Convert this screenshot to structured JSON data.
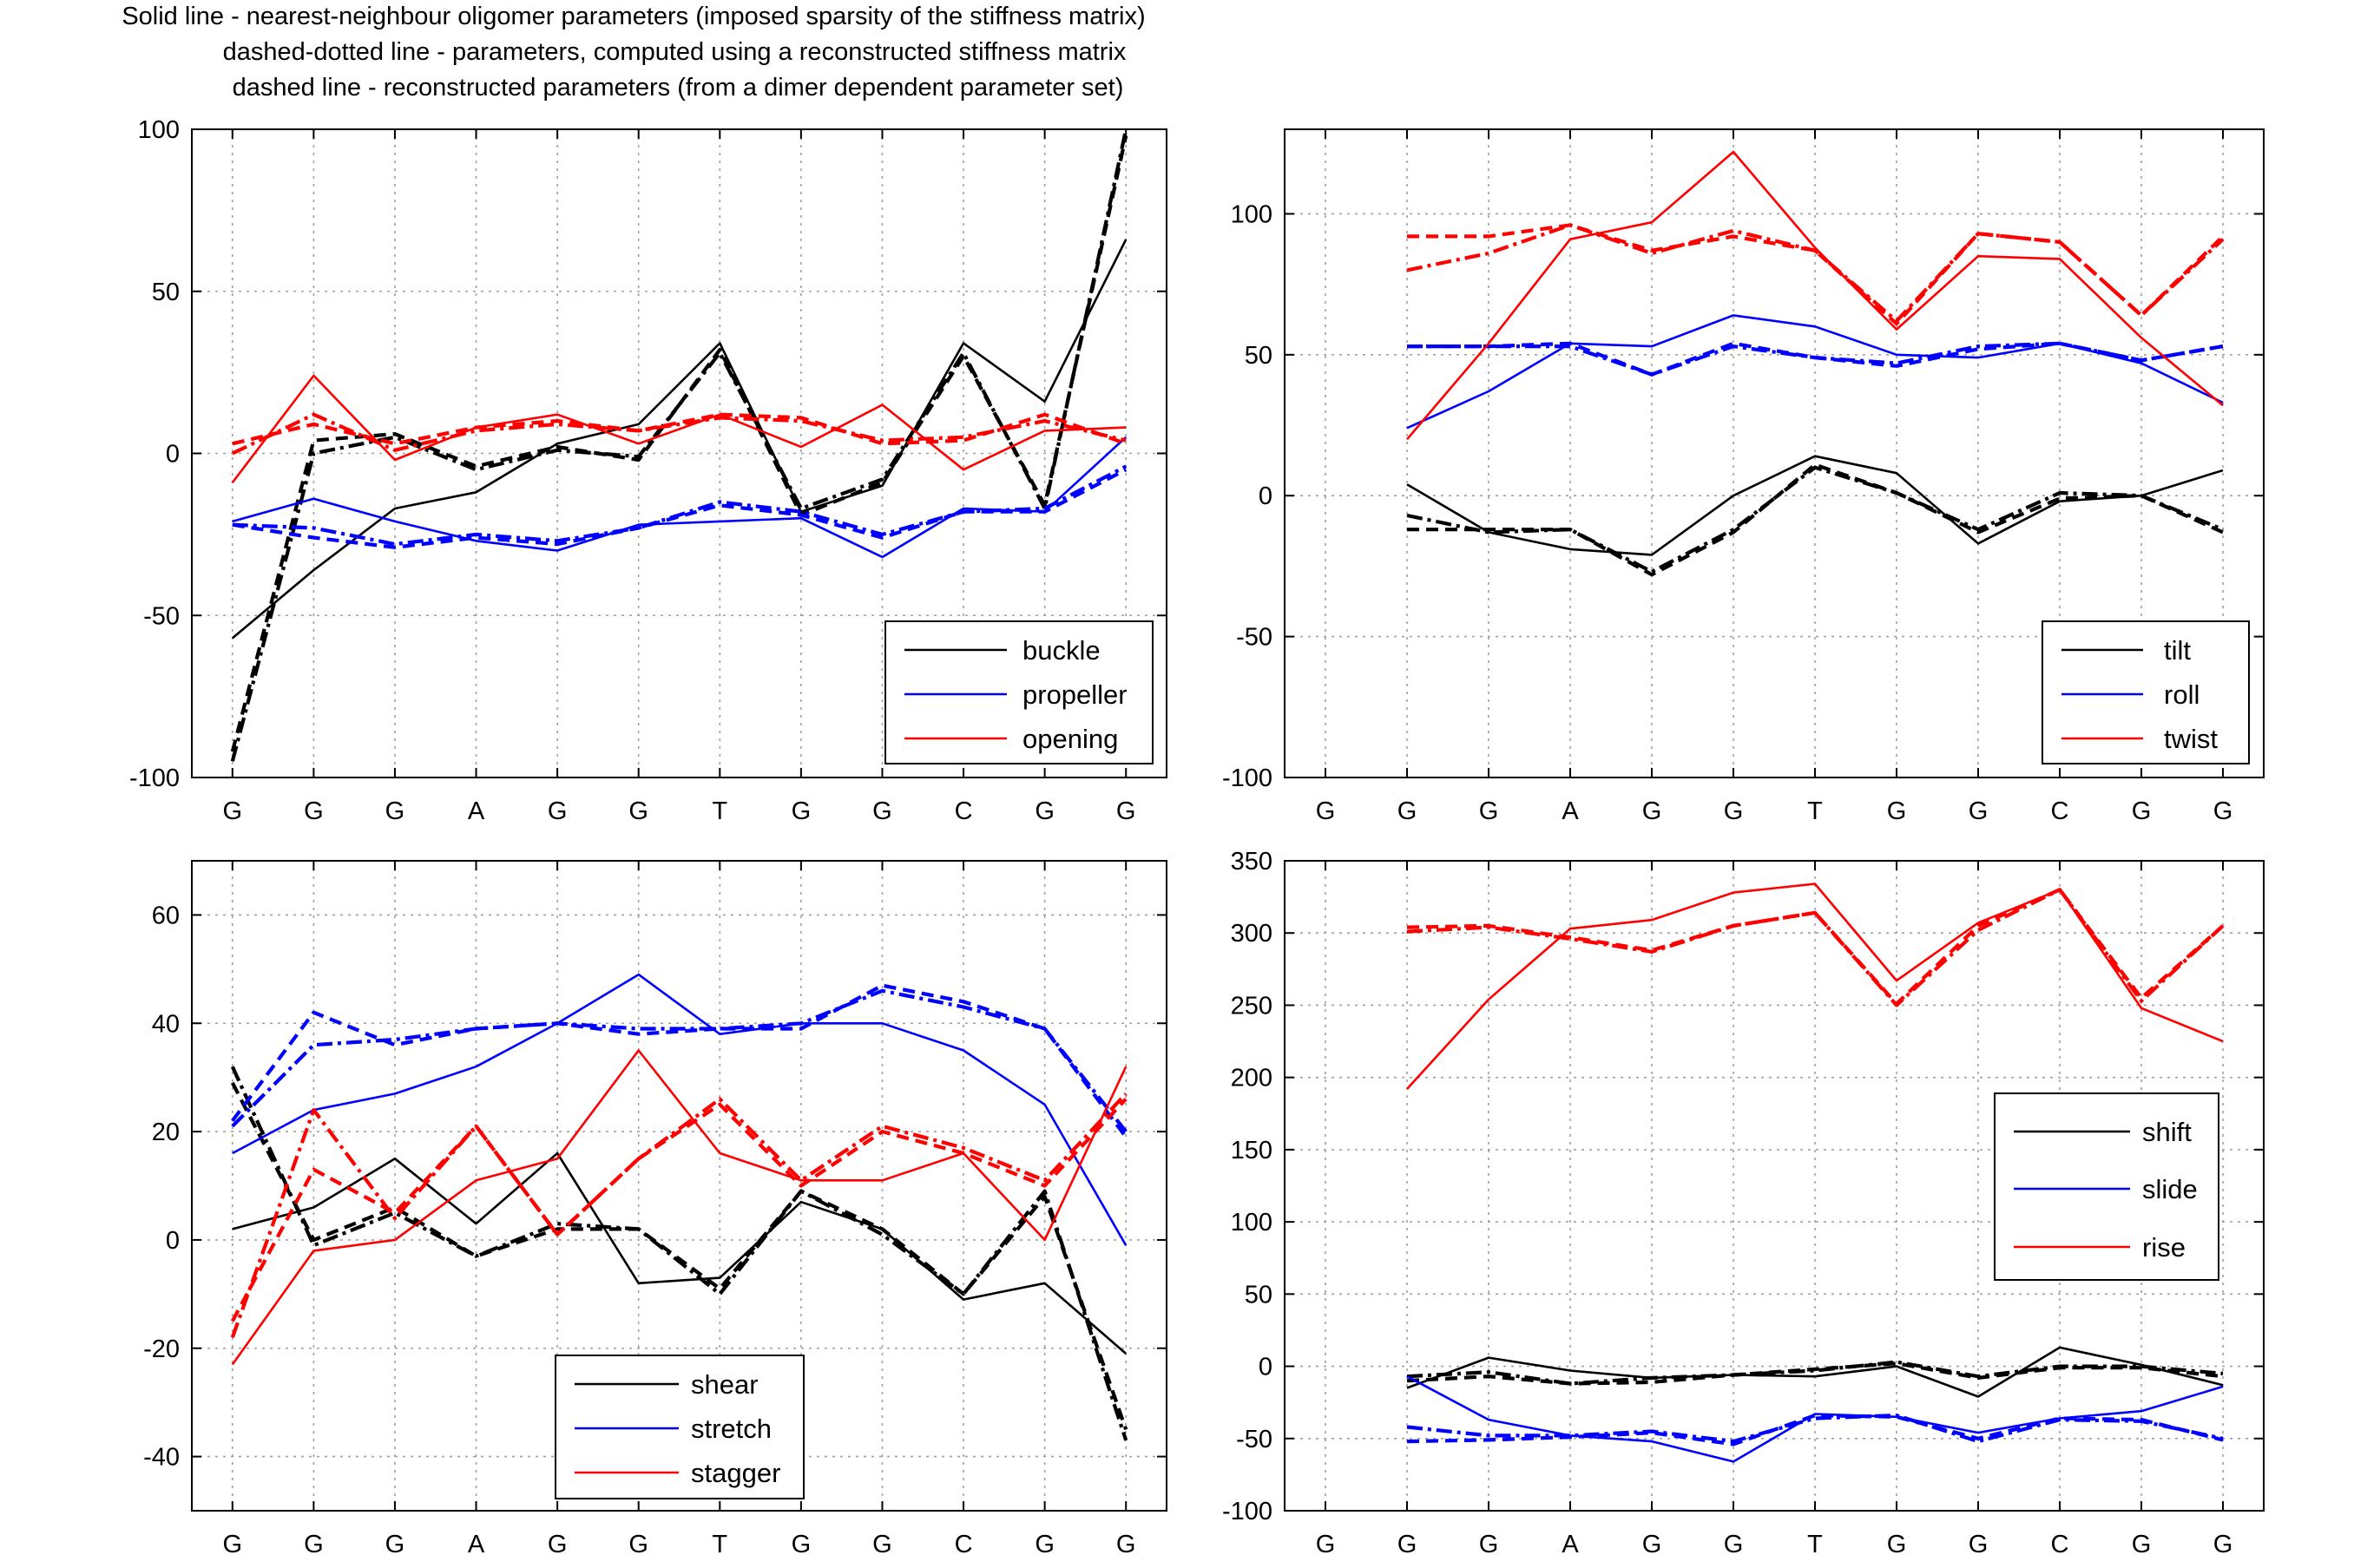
{
  "title_lines": [
    "Solid line - nearest-neighbour oligomer parameters (imposed sparsity of the stiffness matrix)",
    "dashed-dotted line - parameters, computed using a reconstructed stiffness matrix",
    "dashed line - reconstructed parameters (from a dimer dependent parameter set)"
  ],
  "colors": {
    "black": "#000000",
    "blue": "#0000ff",
    "red": "#ff0000"
  },
  "line_styles": [
    "solid",
    "dash-dot",
    "dashed"
  ],
  "chart_data": [
    {
      "type": "line",
      "id": "base-pair-rotations",
      "categories": [
        "G",
        "G",
        "G",
        "A",
        "G",
        "G",
        "T",
        "G",
        "G",
        "C",
        "G",
        "G"
      ],
      "xlim": [
        0.5,
        12.5
      ],
      "ylim": [
        -100,
        100
      ],
      "yticks": [
        -100,
        -50,
        0,
        50,
        100
      ],
      "grid": true,
      "legend_position": "bottom-right",
      "series": [
        {
          "name": "buckle",
          "color": "#000000",
          "solid": [
            -57,
            -36,
            -17,
            -12,
            3,
            9,
            34,
            -18,
            -10,
            34,
            16,
            66
          ],
          "dashdot": [
            -95,
            0,
            5,
            -5,
            1,
            -1,
            31,
            -17,
            -8,
            31,
            -17,
            100
          ],
          "dashed": [
            -92,
            4,
            6,
            -4,
            2,
            -2,
            32,
            -19,
            -9,
            30,
            -16,
            98
          ]
        },
        {
          "name": "propeller",
          "color": "#0000ff",
          "solid": [
            -21,
            -14,
            -21,
            -27,
            -30,
            -22,
            -21,
            -20,
            -32,
            -17,
            -18,
            5
          ],
          "dashdot": [
            -22,
            -23,
            -28,
            -25,
            -27,
            -23,
            -15,
            -18,
            -25,
            -18,
            -17,
            -4
          ],
          "dashed": [
            -22,
            -26,
            -29,
            -26,
            -28,
            -23,
            -16,
            -19,
            -26,
            -18,
            -18,
            -5
          ]
        },
        {
          "name": "opening",
          "color": "#ff0000",
          "solid": [
            -9,
            24,
            -2,
            8,
            12,
            3,
            12,
            2,
            15,
            -5,
            7,
            8
          ],
          "dashdot": [
            0,
            12,
            1,
            7,
            9,
            7,
            11,
            10,
            4,
            5,
            10,
            4
          ],
          "dashed": [
            3,
            9,
            3,
            8,
            10,
            7,
            12,
            11,
            3,
            4,
            12,
            3
          ]
        }
      ]
    },
    {
      "type": "line",
      "id": "step-rotations",
      "categories": [
        "G",
        "G",
        "G",
        "A",
        "G",
        "G",
        "T",
        "G",
        "G",
        "C",
        "G",
        "G"
      ],
      "xlim": [
        0.5,
        12.5
      ],
      "ylim": [
        -100,
        130
      ],
      "yticks": [
        -100,
        -50,
        0,
        50,
        100
      ],
      "grid": true,
      "legend_position": "bottom-right",
      "series": [
        {
          "name": "tilt",
          "color": "#000000",
          "solid": [
            4,
            -13,
            -19,
            -21,
            0,
            14,
            8,
            -17,
            -2,
            0,
            9
          ],
          "dashdot": [
            -7,
            -13,
            -12,
            -27,
            -12,
            10,
            1,
            -12,
            1,
            0,
            -12
          ],
          "dashed": [
            -12,
            -12,
            -12,
            -28,
            -13,
            11,
            1,
            -13,
            -1,
            0,
            -13
          ]
        },
        {
          "name": "roll",
          "color": "#0000ff",
          "solid": [
            24,
            37,
            54,
            53,
            64,
            60,
            50,
            49,
            54,
            47,
            33
          ],
          "dashdot": [
            53,
            53,
            53,
            43,
            53,
            49,
            47,
            53,
            54,
            48,
            53
          ],
          "dashed": [
            53,
            53,
            54,
            43,
            54,
            49,
            46,
            52,
            54,
            48,
            53
          ]
        },
        {
          "name": "twist",
          "color": "#ff0000",
          "solid": [
            20,
            54,
            91,
            97,
            122,
            88,
            59,
            85,
            84,
            56,
            32
          ],
          "dashdot": [
            80,
            86,
            96,
            86,
            94,
            87,
            62,
            93,
            90,
            64,
            91
          ],
          "dashed": [
            92,
            92,
            96,
            87,
            92,
            87,
            61,
            93,
            90,
            64,
            92
          ]
        }
      ]
    },
    {
      "type": "line",
      "id": "base-pair-translations",
      "categories": [
        "G",
        "G",
        "G",
        "A",
        "G",
        "G",
        "T",
        "G",
        "G",
        "C",
        "G",
        "G"
      ],
      "xlim": [
        0.5,
        12.5
      ],
      "ylim": [
        -50,
        70
      ],
      "yticks": [
        -40,
        -20,
        0,
        20,
        40,
        60
      ],
      "grid": true,
      "legend_position": "bottom-center",
      "series": [
        {
          "name": "shear",
          "color": "#000000",
          "solid": [
            2,
            6,
            15,
            3,
            16,
            -8,
            -7,
            7,
            2,
            -11,
            -8,
            -21
          ],
          "dashdot": [
            32,
            -1,
            5,
            -3,
            3,
            2,
            -10,
            9,
            1,
            -10,
            9,
            -37
          ],
          "dashed": [
            29,
            0,
            6,
            -3,
            2,
            2,
            -9,
            9,
            2,
            -10,
            8,
            -35
          ]
        },
        {
          "name": "stretch",
          "color": "#0000ff",
          "solid": [
            16,
            24,
            27,
            32,
            40,
            49,
            38,
            40,
            40,
            35,
            25,
            -1
          ],
          "dashdot": [
            21,
            36,
            37,
            39,
            40,
            39,
            39,
            40,
            46,
            43,
            39,
            20
          ],
          "dashed": [
            22,
            42,
            36,
            39,
            40,
            38,
            39,
            39,
            47,
            44,
            39,
            19
          ]
        },
        {
          "name": "stagger",
          "color": "#ff0000",
          "solid": [
            -23,
            -2,
            0,
            11,
            15,
            35,
            16,
            11,
            11,
            16,
            0,
            32
          ],
          "dashdot": [
            -18,
            24,
            4,
            21,
            1,
            15,
            26,
            11,
            21,
            17,
            11,
            27
          ],
          "dashed": [
            -15,
            13,
            5,
            21,
            1,
            15,
            25,
            10,
            20,
            16,
            10,
            26
          ]
        }
      ]
    },
    {
      "type": "line",
      "id": "step-translations",
      "categories": [
        "G",
        "G",
        "G",
        "A",
        "G",
        "G",
        "T",
        "G",
        "G",
        "C",
        "G",
        "G"
      ],
      "xlim": [
        0.5,
        12.5
      ],
      "ylim": [
        -100,
        350
      ],
      "yticks": [
        -100,
        -50,
        0,
        50,
        100,
        150,
        200,
        250,
        300,
        350
      ],
      "grid": true,
      "legend_position": "right",
      "series": [
        {
          "name": "shift",
          "color": "#000000",
          "solid": [
            -15,
            6,
            -3,
            -8,
            -6,
            -7,
            0,
            -21,
            13,
            1,
            -13
          ],
          "dashdot": [
            -7,
            -4,
            -12,
            -8,
            -6,
            -3,
            3,
            -7,
            0,
            0,
            -5
          ],
          "dashed": [
            -10,
            -7,
            -12,
            -11,
            -6,
            -2,
            2,
            -8,
            -1,
            -1,
            -7
          ]
        },
        {
          "name": "slide",
          "color": "#0000ff",
          "solid": [
            -7,
            -37,
            -48,
            -52,
            -66,
            -33,
            -35,
            -46,
            -36,
            -31,
            -14
          ],
          "dashdot": [
            -42,
            -48,
            -48,
            -45,
            -52,
            -36,
            -34,
            -52,
            -37,
            -38,
            -50
          ],
          "dashed": [
            -52,
            -51,
            -49,
            -46,
            -54,
            -34,
            -35,
            -50,
            -36,
            -37,
            -51
          ]
        },
        {
          "name": "rise",
          "color": "#ff0000",
          "solid": [
            192,
            254,
            303,
            309,
            328,
            334,
            267,
            307,
            330,
            248,
            225
          ],
          "dashdot": [
            301,
            304,
            296,
            287,
            305,
            314,
            250,
            302,
            330,
            253,
            305
          ],
          "dashed": [
            304,
            305,
            297,
            288,
            305,
            314,
            251,
            305,
            330,
            255,
            305
          ]
        }
      ]
    }
  ]
}
